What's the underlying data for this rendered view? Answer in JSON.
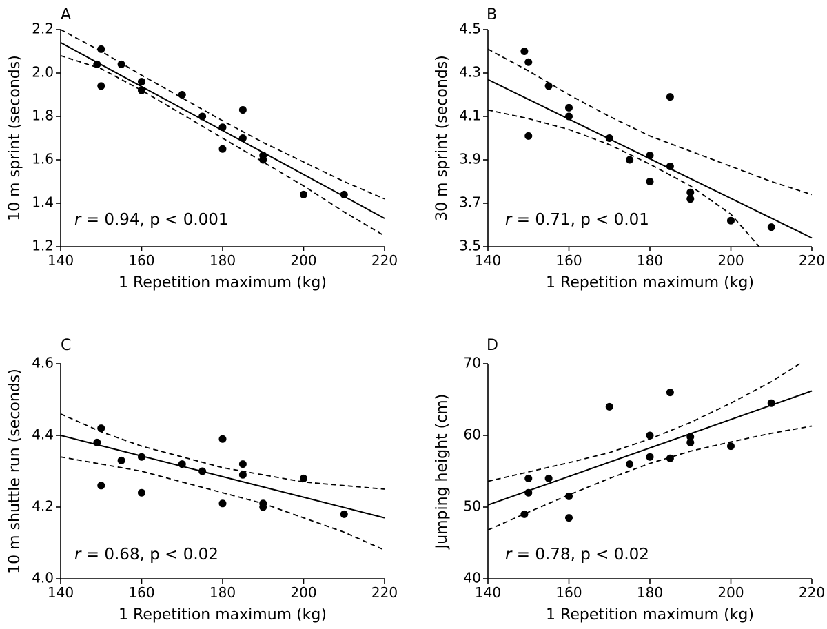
{
  "chart_data": [
    {
      "type": "scatter",
      "panel": "A",
      "xlabel": "1 Repetition maximum (kg)",
      "ylabel": "10 m sprint (seconds)",
      "xlim": [
        140,
        220
      ],
      "ylim": [
        1.2,
        2.2
      ],
      "xticks": [
        "140",
        "160",
        "180",
        "200",
        "220"
      ],
      "yticks": [
        "1.2",
        "1.4",
        "1.6",
        "1.8",
        "2.0",
        "2.2"
      ],
      "stat": {
        "r_symbol": "r",
        "rest": " = 0.94, p < 0.001"
      },
      "points": [
        {
          "x": 149,
          "y": 2.04
        },
        {
          "x": 150,
          "y": 2.11
        },
        {
          "x": 150,
          "y": 1.94
        },
        {
          "x": 155,
          "y": 2.04
        },
        {
          "x": 160,
          "y": 1.96
        },
        {
          "x": 160,
          "y": 1.92
        },
        {
          "x": 170,
          "y": 1.9
        },
        {
          "x": 175,
          "y": 1.8
        },
        {
          "x": 180,
          "y": 1.75
        },
        {
          "x": 180,
          "y": 1.65
        },
        {
          "x": 185,
          "y": 1.83
        },
        {
          "x": 185,
          "y": 1.7
        },
        {
          "x": 190,
          "y": 1.62
        },
        {
          "x": 190,
          "y": 1.6
        },
        {
          "x": 200,
          "y": 1.44
        },
        {
          "x": 210,
          "y": 1.44
        }
      ],
      "fit": {
        "x": [
          140,
          220
        ],
        "y": [
          2.14,
          1.33
        ]
      },
      "ci_upper": {
        "x": [
          140,
          150,
          160,
          170,
          180,
          190,
          200,
          210,
          220
        ],
        "y": [
          2.2,
          2.1,
          1.99,
          1.885,
          1.78,
          1.68,
          1.59,
          1.5,
          1.42
        ]
      },
      "ci_lower": {
        "x": [
          140,
          150,
          160,
          170,
          180,
          190,
          200,
          210,
          220
        ],
        "y": [
          2.08,
          2.02,
          1.92,
          1.81,
          1.7,
          1.59,
          1.48,
          1.36,
          1.25
        ]
      }
    },
    {
      "type": "scatter",
      "panel": "B",
      "xlabel": "1 Repetition maximum (kg)",
      "ylabel": "30 m sprint (seconds)",
      "xlim": [
        140,
        220
      ],
      "ylim": [
        3.5,
        4.5
      ],
      "xticks": [
        "140",
        "160",
        "180",
        "200",
        "220"
      ],
      "yticks": [
        "3.5",
        "3.7",
        "3.9",
        "4.1",
        "4.3",
        "4.5"
      ],
      "stat": {
        "r_symbol": "r",
        "rest": " = 0.71, p < 0.01"
      },
      "points": [
        {
          "x": 149,
          "y": 4.4
        },
        {
          "x": 150,
          "y": 4.35
        },
        {
          "x": 150,
          "y": 4.01
        },
        {
          "x": 155,
          "y": 4.24
        },
        {
          "x": 160,
          "y": 4.14
        },
        {
          "x": 160,
          "y": 4.1
        },
        {
          "x": 170,
          "y": 4.0
        },
        {
          "x": 175,
          "y": 3.9
        },
        {
          "x": 180,
          "y": 3.92
        },
        {
          "x": 180,
          "y": 3.8
        },
        {
          "x": 185,
          "y": 4.19
        },
        {
          "x": 185,
          "y": 3.87
        },
        {
          "x": 190,
          "y": 3.75
        },
        {
          "x": 190,
          "y": 3.72
        },
        {
          "x": 200,
          "y": 3.62
        },
        {
          "x": 210,
          "y": 3.59
        }
      ],
      "fit": {
        "x": [
          140,
          220
        ],
        "y": [
          4.27,
          3.54
        ]
      },
      "ci_upper": {
        "x": [
          140,
          150,
          160,
          170,
          180,
          190,
          200,
          210,
          220
        ],
        "y": [
          4.41,
          4.31,
          4.2,
          4.1,
          4.01,
          3.94,
          3.87,
          3.8,
          3.74
        ]
      },
      "ci_lower": {
        "x": [
          140,
          150,
          160,
          170,
          180,
          190,
          200,
          207
        ],
        "y": [
          4.13,
          4.09,
          4.04,
          3.97,
          3.88,
          3.78,
          3.65,
          3.5
        ]
      }
    },
    {
      "type": "scatter",
      "panel": "C",
      "xlabel": "1 Repetition maximum (kg)",
      "ylabel": "10 m shuttle run (seconds)",
      "xlim": [
        140,
        220
      ],
      "ylim": [
        4.0,
        4.6
      ],
      "xticks": [
        "140",
        "160",
        "180",
        "200",
        "220"
      ],
      "yticks": [
        "4.0",
        "4.2",
        "4.4",
        "4.6"
      ],
      "stat": {
        "r_symbol": "r",
        "rest": " = 0.68, p < 0.02"
      },
      "points": [
        {
          "x": 149,
          "y": 4.38
        },
        {
          "x": 150,
          "y": 4.42
        },
        {
          "x": 150,
          "y": 4.26
        },
        {
          "x": 155,
          "y": 4.33
        },
        {
          "x": 160,
          "y": 4.34
        },
        {
          "x": 160,
          "y": 4.24
        },
        {
          "x": 170,
          "y": 4.32
        },
        {
          "x": 175,
          "y": 4.3
        },
        {
          "x": 180,
          "y": 4.39
        },
        {
          "x": 180,
          "y": 4.21
        },
        {
          "x": 185,
          "y": 4.32
        },
        {
          "x": 185,
          "y": 4.29
        },
        {
          "x": 190,
          "y": 4.21
        },
        {
          "x": 190,
          "y": 4.2
        },
        {
          "x": 200,
          "y": 4.28
        },
        {
          "x": 210,
          "y": 4.18
        }
      ],
      "fit": {
        "x": [
          140,
          220
        ],
        "y": [
          4.4,
          4.17
        ]
      },
      "ci_upper": {
        "x": [
          140,
          150,
          160,
          170,
          180,
          190,
          200,
          210,
          220
        ],
        "y": [
          4.46,
          4.41,
          4.37,
          4.34,
          4.31,
          4.29,
          4.27,
          4.26,
          4.25
        ]
      },
      "ci_lower": {
        "x": [
          140,
          150,
          160,
          170,
          180,
          190,
          200,
          210,
          220
        ],
        "y": [
          4.34,
          4.32,
          4.3,
          4.27,
          4.24,
          4.21,
          4.17,
          4.13,
          4.08
        ]
      }
    },
    {
      "type": "scatter",
      "panel": "D",
      "xlabel": "1 Repetition maximum (kg)",
      "ylabel": "Jumping height (cm)",
      "xlim": [
        140,
        220
      ],
      "ylim": [
        40,
        70
      ],
      "xticks": [
        "140",
        "160",
        "180",
        "200",
        "220"
      ],
      "yticks": [
        "40",
        "50",
        "60",
        "70"
      ],
      "stat": {
        "r_symbol": "r",
        "rest": " = 0.78, p < 0.02"
      },
      "points": [
        {
          "x": 149,
          "y": 49
        },
        {
          "x": 150,
          "y": 54
        },
        {
          "x": 150,
          "y": 52
        },
        {
          "x": 155,
          "y": 54
        },
        {
          "x": 160,
          "y": 51.5
        },
        {
          "x": 160,
          "y": 48.5
        },
        {
          "x": 170,
          "y": 64
        },
        {
          "x": 175,
          "y": 56
        },
        {
          "x": 180,
          "y": 60
        },
        {
          "x": 180,
          "y": 57
        },
        {
          "x": 185,
          "y": 66
        },
        {
          "x": 185,
          "y": 56.8
        },
        {
          "x": 190,
          "y": 59.8
        },
        {
          "x": 190,
          "y": 59
        },
        {
          "x": 200,
          "y": 58.5
        },
        {
          "x": 210,
          "y": 64.5
        }
      ],
      "fit": {
        "x": [
          140,
          220
        ],
        "y": [
          50.3,
          66.2
        ]
      },
      "ci_upper": {
        "x": [
          140,
          150,
          160,
          170,
          180,
          190,
          200,
          210,
          217
        ],
        "y": [
          53.6,
          54.9,
          56.2,
          57.6,
          59.5,
          61.8,
          64.5,
          67.5,
          70
        ]
      },
      "ci_lower": {
        "x": [
          140,
          150,
          160,
          170,
          180,
          190,
          200,
          210,
          220
        ],
        "y": [
          46.8,
          49.3,
          51.7,
          54,
          56.1,
          57.8,
          59.1,
          60.3,
          61.3
        ]
      }
    }
  ]
}
